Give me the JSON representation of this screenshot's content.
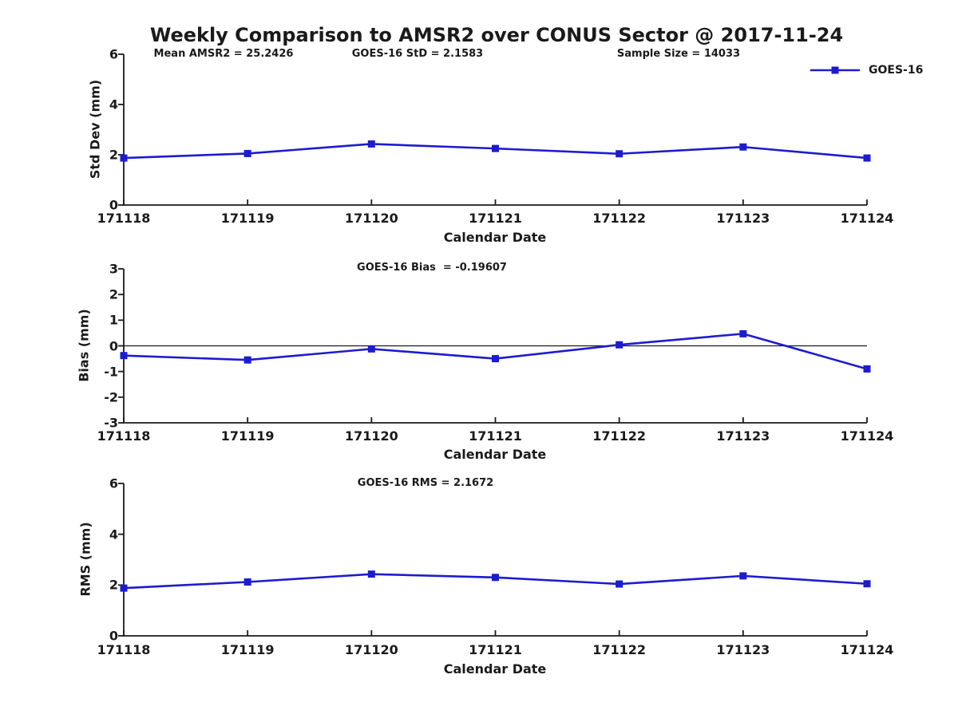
{
  "title": "Weekly Comparison to AMSR2 over CONUS Sector @ 2017-11-24",
  "colors": {
    "series": "#1C1CCE",
    "axis": "#1a1a1a",
    "zero_line": "#1a1a1a"
  },
  "legend": {
    "label": "GOES-16",
    "position": "top-right-of-first-subplot"
  },
  "chart_data": [
    {
      "type": "line",
      "name": "std-dev",
      "ylabel": "Std Dev (mm)",
      "xlabel": "Calendar Date",
      "categories": [
        "171118",
        "171119",
        "171120",
        "171121",
        "171122",
        "171123",
        "171124"
      ],
      "series": [
        {
          "name": "GOES-16",
          "marker": "square",
          "values": [
            1.87,
            2.05,
            2.43,
            2.25,
            2.04,
            2.31,
            1.87
          ]
        }
      ],
      "ylim": [
        0,
        6
      ],
      "yticks": [
        0,
        2,
        4,
        6
      ],
      "grid": false,
      "annotations": [
        "Mean AMSR2 = 25.2426",
        "GOES-16 StD = 2.1583",
        "Sample Size = 14033"
      ]
    },
    {
      "type": "line",
      "name": "bias",
      "ylabel": "Bias (mm)",
      "xlabel": "Calendar Date",
      "categories": [
        "171118",
        "171119",
        "171120",
        "171121",
        "171122",
        "171123",
        "171124"
      ],
      "series": [
        {
          "name": "GOES-16",
          "marker": "square",
          "values": [
            -0.38,
            -0.55,
            -0.12,
            -0.5,
            0.04,
            0.47,
            -0.9
          ]
        }
      ],
      "ylim": [
        -3,
        3
      ],
      "yticks": [
        -3,
        -2,
        -1,
        0,
        1,
        2,
        3
      ],
      "zero_line": true,
      "grid": false,
      "annotations": [
        "GOES-16 Bias  = -0.19607"
      ]
    },
    {
      "type": "line",
      "name": "rms",
      "ylabel": "RMS (mm)",
      "xlabel": "Calendar Date",
      "categories": [
        "171118",
        "171119",
        "171120",
        "171121",
        "171122",
        "171123",
        "171124"
      ],
      "series": [
        {
          "name": "GOES-16",
          "marker": "square",
          "values": [
            1.88,
            2.12,
            2.43,
            2.3,
            2.04,
            2.36,
            2.05
          ]
        }
      ],
      "ylim": [
        0,
        6
      ],
      "yticks": [
        0,
        2,
        4,
        6
      ],
      "grid": false,
      "annotations": [
        "GOES-16 RMS = 2.1672"
      ]
    }
  ]
}
